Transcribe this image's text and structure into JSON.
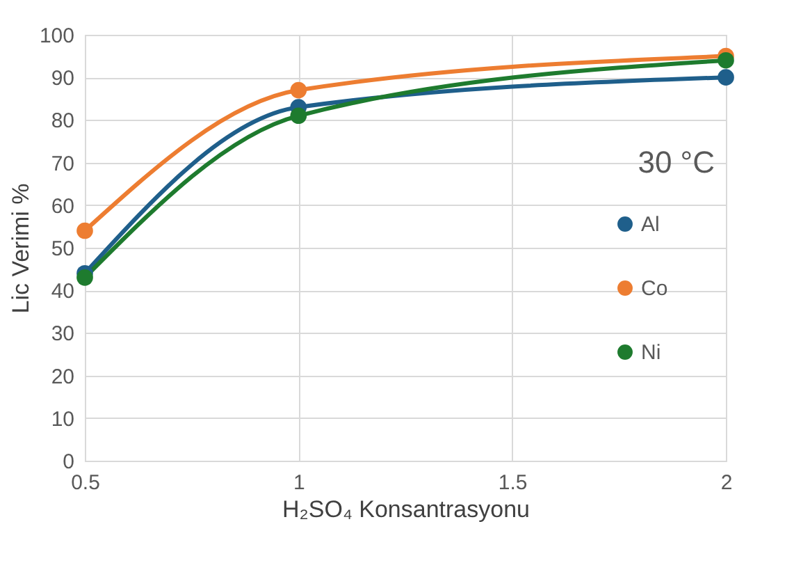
{
  "chart_data": {
    "type": "line",
    "xlabel": "H₂SO₄ Konsantrasyonu",
    "ylabel": "Lic Verimi %",
    "x": [
      0.5,
      1,
      2
    ],
    "series": [
      {
        "name": "Al",
        "color": "#1f5f8b",
        "values": [
          44,
          83,
          90
        ]
      },
      {
        "name": "Co",
        "color": "#ed7d31",
        "values": [
          54,
          87,
          95
        ]
      },
      {
        "name": "Ni",
        "color": "#1e7b2e",
        "values": [
          43,
          81,
          94
        ]
      }
    ],
    "xlim": [
      0.5,
      2
    ],
    "xticks": [
      0.5,
      1,
      1.5,
      2
    ],
    "ylim": [
      0,
      100
    ],
    "yticks": [
      0,
      10,
      20,
      30,
      40,
      50,
      60,
      70,
      80,
      90,
      100
    ],
    "grid": true,
    "legend": "right",
    "marker": "circle",
    "line_style": "solid",
    "annotations": [
      "30 °C"
    ]
  }
}
